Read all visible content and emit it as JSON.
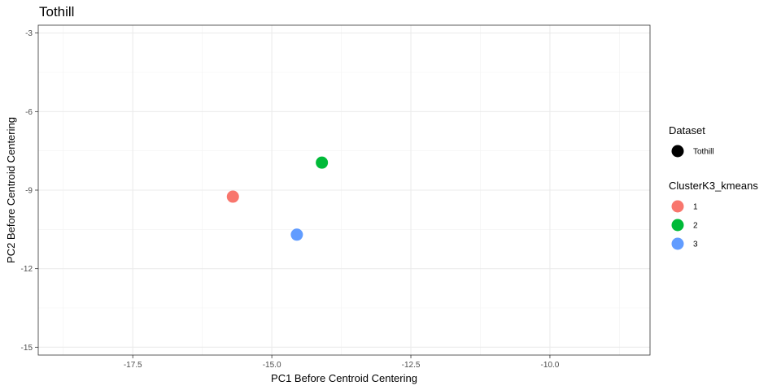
{
  "chart_data": {
    "type": "scatter",
    "title": "Tothill",
    "xlabel": "PC1 Before Centroid Centering",
    "ylabel": "PC2 Before Centroid Centering",
    "xlim": [
      -19.2,
      -8.2
    ],
    "ylim": [
      -15.3,
      -2.7
    ],
    "x_ticks": [
      -17.5,
      -15.0,
      -12.5,
      -10.0
    ],
    "x_tick_labels": [
      "-17.5",
      "-15.0",
      "-12.5",
      "-10.0"
    ],
    "y_ticks": [
      -3,
      -6,
      -9,
      -12,
      -15
    ],
    "y_tick_labels": [
      "-3",
      "-6",
      "-9",
      "-12",
      "-15"
    ],
    "grid": true,
    "legend_placement": "right",
    "series": [
      {
        "name": "1",
        "color": "#F8766D",
        "points": [
          {
            "x": -15.7,
            "y": -9.25
          }
        ]
      },
      {
        "name": "2",
        "color": "#00BA38",
        "points": [
          {
            "x": -14.1,
            "y": -7.95
          }
        ]
      },
      {
        "name": "3",
        "color": "#619CFF",
        "points": [
          {
            "x": -14.55,
            "y": -10.7
          }
        ]
      }
    ],
    "legends": [
      {
        "title": "Dataset",
        "items": [
          {
            "label": "Tothill",
            "color": "#000000"
          }
        ]
      },
      {
        "title": "ClusterK3_kmeans",
        "items": [
          {
            "label": "1",
            "color": "#F8766D"
          },
          {
            "label": "2",
            "color": "#00BA38"
          },
          {
            "label": "3",
            "color": "#619CFF"
          }
        ]
      }
    ]
  }
}
